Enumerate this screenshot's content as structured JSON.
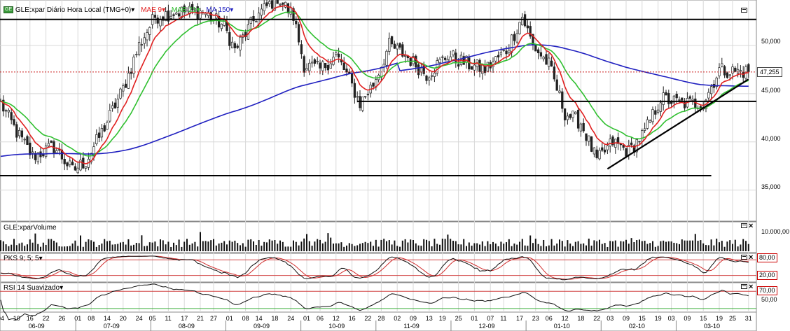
{
  "header": {
    "symbol_icon": "GE",
    "title": "GLE:xpar Diário Hora Local (TMG+0)",
    "ma1": "MAE 9",
    "ma2": "MAE 21",
    "ma3": "MA 150"
  },
  "colors": {
    "up": "#ffffff",
    "down": "#222222",
    "ma1": "#e02020",
    "ma2": "#30c030",
    "ma3": "#2020c0",
    "grid": "#d8d8d8",
    "last_price_line": "#cc2020"
  },
  "price_axis": {
    "labels": [
      "50,000",
      "45,000",
      "40,000",
      "35,000"
    ],
    "last_price": "47,255"
  },
  "volume_panel": {
    "title": "GLE:xparVolume",
    "axis_label": "10.000,00"
  },
  "pks_panel": {
    "title": "PKS 9; 5; 5",
    "upper": "80,00",
    "lower": "20,00"
  },
  "rsi_panel": {
    "title": "RSI 14 Suavizado",
    "upper": "70,00",
    "mid": "50,00"
  },
  "x_axis": {
    "days": [
      "04",
      "10",
      "16",
      "22",
      "26",
      "01",
      "08",
      "14",
      "20",
      "24",
      "05",
      "11",
      "17",
      "21",
      "27",
      "01",
      "08",
      "14",
      "18",
      "24",
      "01",
      "06",
      "12",
      "16",
      "22",
      "28",
      "02",
      "09",
      "13",
      "19",
      "25",
      "01",
      "07",
      "11",
      "17",
      "23",
      "06",
      "12",
      "18",
      "22",
      "03",
      "09",
      "15",
      "19",
      "03",
      "09",
      "15",
      "19",
      "25",
      "31"
    ],
    "months": [
      "06-09",
      "07-09",
      "08-09",
      "09-09",
      "10-09",
      "11-09",
      "12-09",
      "01-10",
      "02-10",
      "03-10"
    ]
  },
  "chart_data": {
    "type": "candlestick",
    "instrument": "GLE:xpar",
    "period": "Diário",
    "x_range": [
      "2009-06-04",
      "2010-03-31"
    ],
    "ylim": [
      32,
      54.5
    ],
    "anchors": [
      {
        "t": 0,
        "v": 44
      },
      {
        "t": 6,
        "v": 41
      },
      {
        "t": 12,
        "v": 38.5
      },
      {
        "t": 20,
        "v": 39.5
      },
      {
        "t": 27,
        "v": 37
      },
      {
        "t": 32,
        "v": 38
      },
      {
        "t": 38,
        "v": 41
      },
      {
        "t": 46,
        "v": 45.5
      },
      {
        "t": 52,
        "v": 50
      },
      {
        "t": 58,
        "v": 53
      },
      {
        "t": 66,
        "v": 53.5
      },
      {
        "t": 76,
        "v": 53.5
      },
      {
        "t": 84,
        "v": 52
      },
      {
        "t": 88,
        "v": 49.5
      },
      {
        "t": 96,
        "v": 53
      },
      {
        "t": 104,
        "v": 55
      },
      {
        "t": 110,
        "v": 53
      },
      {
        "t": 114,
        "v": 48
      },
      {
        "t": 120,
        "v": 47.5
      },
      {
        "t": 126,
        "v": 49
      },
      {
        "t": 130,
        "v": 47
      },
      {
        "t": 135,
        "v": 44
      },
      {
        "t": 140,
        "v": 46
      },
      {
        "t": 146,
        "v": 50
      },
      {
        "t": 152,
        "v": 49
      },
      {
        "t": 160,
        "v": 47
      },
      {
        "t": 168,
        "v": 49
      },
      {
        "t": 176,
        "v": 48
      },
      {
        "t": 182,
        "v": 47.5
      },
      {
        "t": 190,
        "v": 49.5
      },
      {
        "t": 196,
        "v": 53
      },
      {
        "t": 200,
        "v": 50
      },
      {
        "t": 206,
        "v": 48
      },
      {
        "t": 212,
        "v": 43
      },
      {
        "t": 218,
        "v": 42
      },
      {
        "t": 224,
        "v": 38
      },
      {
        "t": 230,
        "v": 40
      },
      {
        "t": 236,
        "v": 39
      },
      {
        "t": 242,
        "v": 41
      },
      {
        "t": 248,
        "v": 44.5
      },
      {
        "t": 256,
        "v": 44
      },
      {
        "t": 264,
        "v": 44
      },
      {
        "t": 270,
        "v": 47.5
      },
      {
        "t": 276,
        "v": 47.3
      }
    ],
    "horizontal_lines": [
      52.7,
      36.5,
      44.2
    ],
    "trendline": {
      "from": {
        "t": 228,
        "v": 37.2
      },
      "to": {
        "t": 281,
        "v": 46.5
      }
    },
    "last_price": 47.255,
    "series": [
      {
        "name": "MAE 9",
        "period": 9,
        "kind": "ema"
      },
      {
        "name": "MAE 21",
        "period": 21,
        "kind": "ema"
      },
      {
        "name": "MA 150",
        "period": 150,
        "kind": "sma"
      }
    ]
  }
}
